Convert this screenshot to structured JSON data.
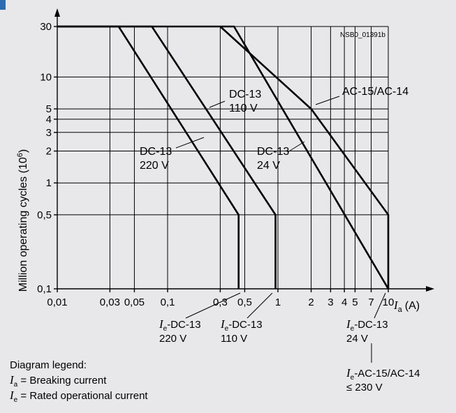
{
  "chart_data": {
    "type": "line",
    "id_code": "NSB0_01391b",
    "ylabel": "Million operating cycles (10",
    "ylabel_exp": "6",
    "ylabel_end": ")",
    "xlabel_symbol": "I",
    "xlabel_sub": "a",
    "xlabel_unit": "(A)",
    "x_scale": "log",
    "y_scale": "log",
    "xlim": [
      0.01,
      10
    ],
    "ylim": [
      0.1,
      30
    ],
    "x_ticks": [
      0.01,
      0.03,
      0.05,
      0.1,
      0.3,
      0.5,
      1,
      2,
      3,
      4,
      5,
      7,
      10
    ],
    "x_tick_labels": [
      "0,01",
      "0,03",
      "0,05",
      "0,1",
      "0,3",
      "0,5",
      "1",
      "2",
      "3",
      "4",
      "5",
      "7",
      "10"
    ],
    "y_ticks": [
      0.1,
      0.5,
      1,
      2,
      3,
      4,
      5,
      10,
      30
    ],
    "y_tick_labels": [
      "0,1",
      "0,5",
      "1",
      "2",
      "3",
      "4",
      "5",
      "10",
      "30"
    ],
    "grid": true,
    "series": [
      {
        "name": "DC-13 220 V",
        "x": [
          0.01,
          0.036,
          0.44,
          0.44
        ],
        "y": [
          30,
          30,
          0.5,
          0.1
        ]
      },
      {
        "name": "DC-13 110 V",
        "x": [
          0.01,
          0.072,
          0.95,
          0.95
        ],
        "y": [
          30,
          30,
          0.5,
          0.1
        ]
      },
      {
        "name": "DC-13 24 V",
        "x": [
          0.01,
          0.4,
          10,
          10
        ],
        "y": [
          30,
          30,
          0.1,
          0.1
        ]
      },
      {
        "name": "AC-15/AC-14",
        "x": [
          0.3,
          2.0,
          10,
          10
        ],
        "y": [
          30,
          5,
          0.5,
          0.1
        ]
      }
    ],
    "series_labels": [
      {
        "line1": "DC-13",
        "line2": "220 V"
      },
      {
        "line1": "DC-13",
        "line2": "110 V"
      },
      {
        "line1": "DC-13",
        "line2": "24 V"
      },
      {
        "line1": "AC-15/AC-14",
        "line2": ""
      }
    ],
    "current_labels": [
      {
        "symbol": "I",
        "sub": "e",
        "text": "-DC-13",
        "line2": "220 V"
      },
      {
        "symbol": "I",
        "sub": "e",
        "text": "-DC-13",
        "line2": "110 V"
      },
      {
        "symbol": "I",
        "sub": "e",
        "text": "-DC-13",
        "line2": "24 V"
      },
      {
        "symbol": "I",
        "sub": "e",
        "text": "-AC-15/AC-14",
        "line2": "≤ 230 V"
      }
    ]
  },
  "legend": {
    "title": "Diagram legend:",
    "items": [
      {
        "symbol": "I",
        "sub": "a",
        "text": " = Breaking current"
      },
      {
        "symbol": "I",
        "sub": "e",
        "text": " = Rated operational current"
      }
    ]
  },
  "colors": {
    "background": "#e8e8ea",
    "ink": "#000000",
    "marker": "#2b6cb0"
  }
}
